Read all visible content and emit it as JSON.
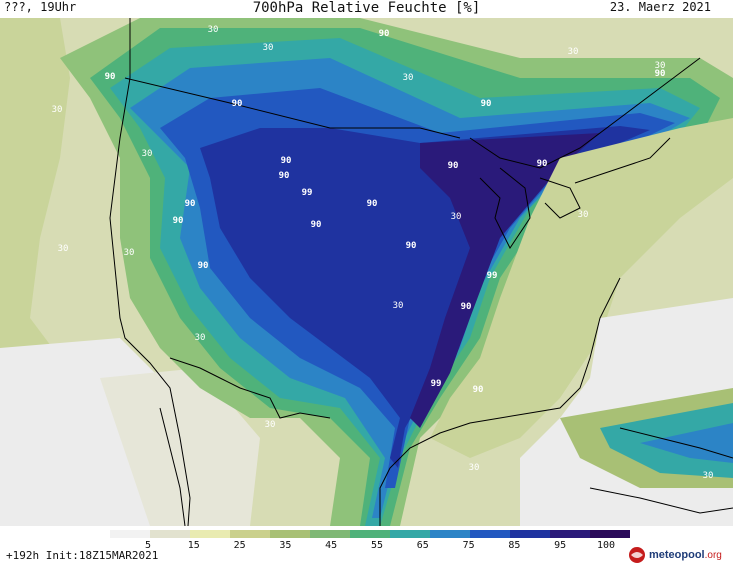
{
  "header": {
    "left": "???, 19Uhr",
    "title": "700hPa Relative Feuchte [%]",
    "right": "23. Maerz 2021"
  },
  "footer": {
    "left": "+192h  Init:18Z15MAR2021",
    "logo_main": "meteopool",
    "logo_suffix": ".org"
  },
  "colorbar": {
    "labels": [
      "5",
      "15",
      "25",
      "35",
      "45",
      "55",
      "65",
      "75",
      "85",
      "95",
      "100"
    ],
    "colors": [
      "#f2f2f2",
      "#e2e2cf",
      "#e9ebb1",
      "#cad08c",
      "#a8c075",
      "#7fb875",
      "#4fb27a",
      "#34a8a6",
      "#2c84c6",
      "#2258c0",
      "#1f33a0",
      "#2a1a7a",
      "#2a0a5a"
    ]
  },
  "map": {
    "contour_labels": [
      "30",
      "90",
      "99"
    ]
  }
}
